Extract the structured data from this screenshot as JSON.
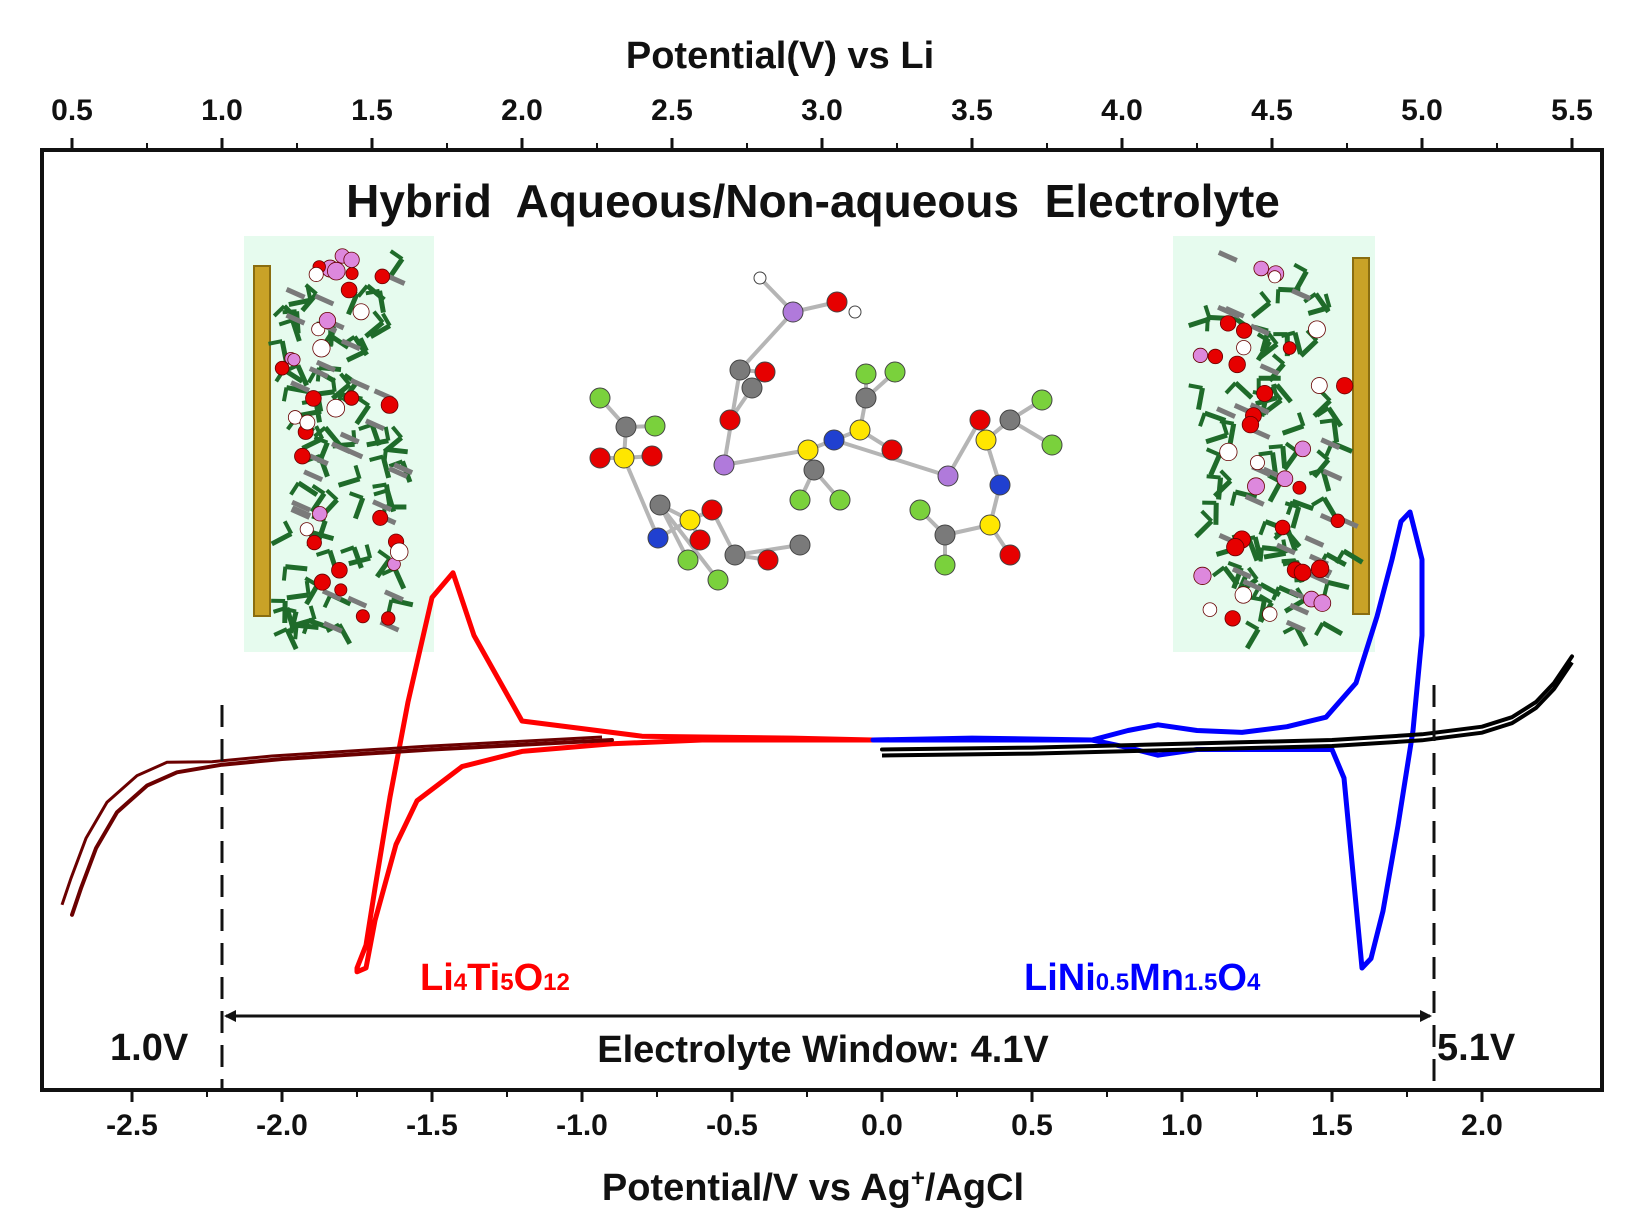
{
  "chart_data": {
    "type": "line",
    "title": "Hybrid  Aqueous/Non-aqueous  Electrolyte",
    "xlabel_bottom": {
      "main": "Potential/V vs Ag",
      "sup": "+",
      "tail": "/AgCl"
    },
    "xlabel_top": "Potential(V) vs Li",
    "bottom_ticks": [
      "-2.5",
      "-2.0",
      "-1.5",
      "-1.0",
      "-0.5",
      "0.0",
      "0.5",
      "1.0",
      "1.5",
      "2.0"
    ],
    "top_ticks": [
      "0.5",
      "1.0",
      "1.5",
      "2.0",
      "2.5",
      "3.0",
      "3.5",
      "4.0",
      "4.5",
      "5.0",
      "5.5"
    ],
    "xlim_bottom": [
      -2.8,
      2.4
    ],
    "xlim_top": [
      0.4,
      5.6
    ],
    "grid": false,
    "colors": {
      "li4ti5o12": "#ff0000",
      "lini": "#0000ff",
      "electrolyte_dark": "#6b0000",
      "electrolyte_black": "#000000",
      "image_bg": "#e6fbee",
      "electrode": "#c9a227"
    },
    "series": [
      {
        "name": "Li4Ti5O12",
        "color": "#ff0000",
        "x": [
          -0.03,
          -0.3,
          -0.8,
          -1.2,
          -1.36,
          -1.43,
          -1.5,
          -1.58,
          -1.64,
          -1.69,
          -1.72,
          -1.75,
          -1.75,
          -1.72,
          -1.69,
          -1.62,
          -1.55,
          -1.4,
          -1.2,
          -0.9,
          -0.6,
          -0.3,
          -0.03
        ],
        "y": [
          0.0,
          0.01,
          0.02,
          0.1,
          0.55,
          0.88,
          0.75,
          0.2,
          -0.3,
          -0.78,
          -1.08,
          -1.2,
          -1.22,
          -1.2,
          -0.95,
          -0.55,
          -0.32,
          -0.14,
          -0.06,
          -0.02,
          0.0,
          0.0,
          0.0
        ]
      },
      {
        "name": "LiNi0.5Mn1.5O4",
        "color": "#0000ff",
        "x": [
          -0.03,
          0.3,
          0.7,
          0.82,
          0.92,
          1.05,
          1.2,
          1.35,
          1.48,
          1.58,
          1.65,
          1.7,
          1.73,
          1.76,
          1.8,
          1.8,
          1.77,
          1.72,
          1.67,
          1.63,
          1.6,
          1.57,
          1.54,
          1.5,
          1.4,
          1.2,
          1.05,
          0.92,
          0.82,
          0.7,
          0.4,
          -0.03
        ],
        "y": [
          0.0,
          0.01,
          0.0,
          0.05,
          0.08,
          0.05,
          0.04,
          0.07,
          0.12,
          0.3,
          0.65,
          0.95,
          1.15,
          1.2,
          0.95,
          0.55,
          0.05,
          -0.45,
          -0.9,
          -1.15,
          -1.2,
          -0.7,
          -0.2,
          -0.05,
          -0.05,
          -0.05,
          -0.05,
          -0.08,
          -0.04,
          0.0,
          0.0,
          0.0
        ]
      },
      {
        "name": "electrolyte-negative",
        "color": "#6b0000",
        "x": [
          -0.9,
          -1.5,
          -2.0,
          -2.2,
          -2.35,
          -2.45,
          -2.55,
          -2.62,
          -2.67,
          -2.7
        ],
        "y": [
          0.0,
          -0.05,
          -0.1,
          -0.13,
          -0.17,
          -0.24,
          -0.38,
          -0.57,
          -0.78,
          -0.92
        ]
      },
      {
        "name": "electrolyte-positive",
        "color": "#000000",
        "x": [
          0.0,
          0.5,
          1.0,
          1.5,
          1.8,
          2.0,
          2.1,
          2.18,
          2.24,
          2.3
        ],
        "y": [
          -0.05,
          -0.04,
          -0.02,
          0.0,
          0.03,
          0.07,
          0.12,
          0.2,
          0.3,
          0.44
        ]
      }
    ],
    "annotations": {
      "left_window_label": "1.0V",
      "right_window_label": "5.1V",
      "window_text": "Electrolyte Window: 4.1V",
      "left_limit_x": -2.2,
      "right_limit_x": 1.84,
      "li4ti5o12_label": {
        "parts": [
          [
            "Li",
            false
          ],
          [
            "4",
            true
          ],
          [
            "Ti",
            false
          ],
          [
            "5",
            true
          ],
          [
            "O",
            false
          ],
          [
            "12",
            true
          ]
        ]
      },
      "lini_label": {
        "parts": [
          [
            "LiNi",
            false
          ],
          [
            "0.5",
            true
          ],
          [
            "Mn",
            false
          ],
          [
            "1.5",
            true
          ],
          [
            "O",
            false
          ],
          [
            "4",
            true
          ]
        ]
      }
    }
  }
}
